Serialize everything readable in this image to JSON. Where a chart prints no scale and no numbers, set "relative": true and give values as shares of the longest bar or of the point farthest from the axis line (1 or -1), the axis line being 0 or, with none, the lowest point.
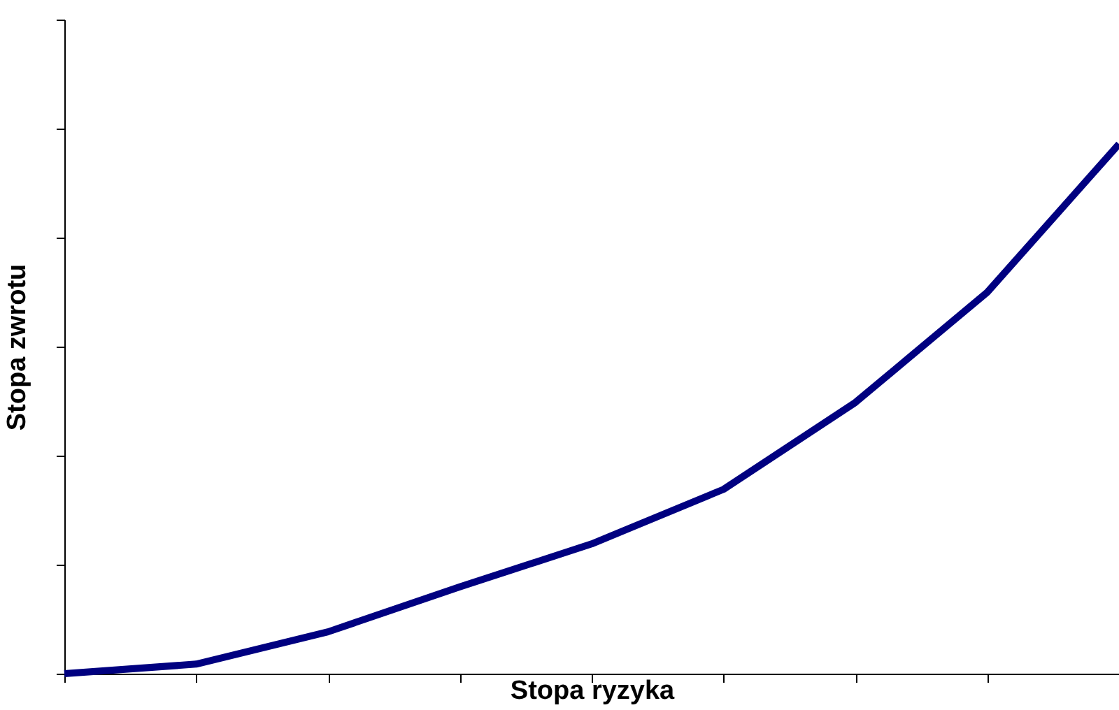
{
  "chart_data": {
    "type": "line",
    "xlabel": "Stopa ryzyka",
    "ylabel": "Stopa zwrotu",
    "relative": true,
    "tick_labels": false,
    "grid": false,
    "categories": [
      null,
      null,
      null,
      null,
      null,
      null,
      null,
      null,
      null
    ],
    "series": [
      {
        "color": "#000080",
        "values": [
          0,
          0.018,
          0.079,
          0.164,
          0.245,
          0.348,
          0.512,
          0.72,
          1
        ]
      }
    ]
  }
}
